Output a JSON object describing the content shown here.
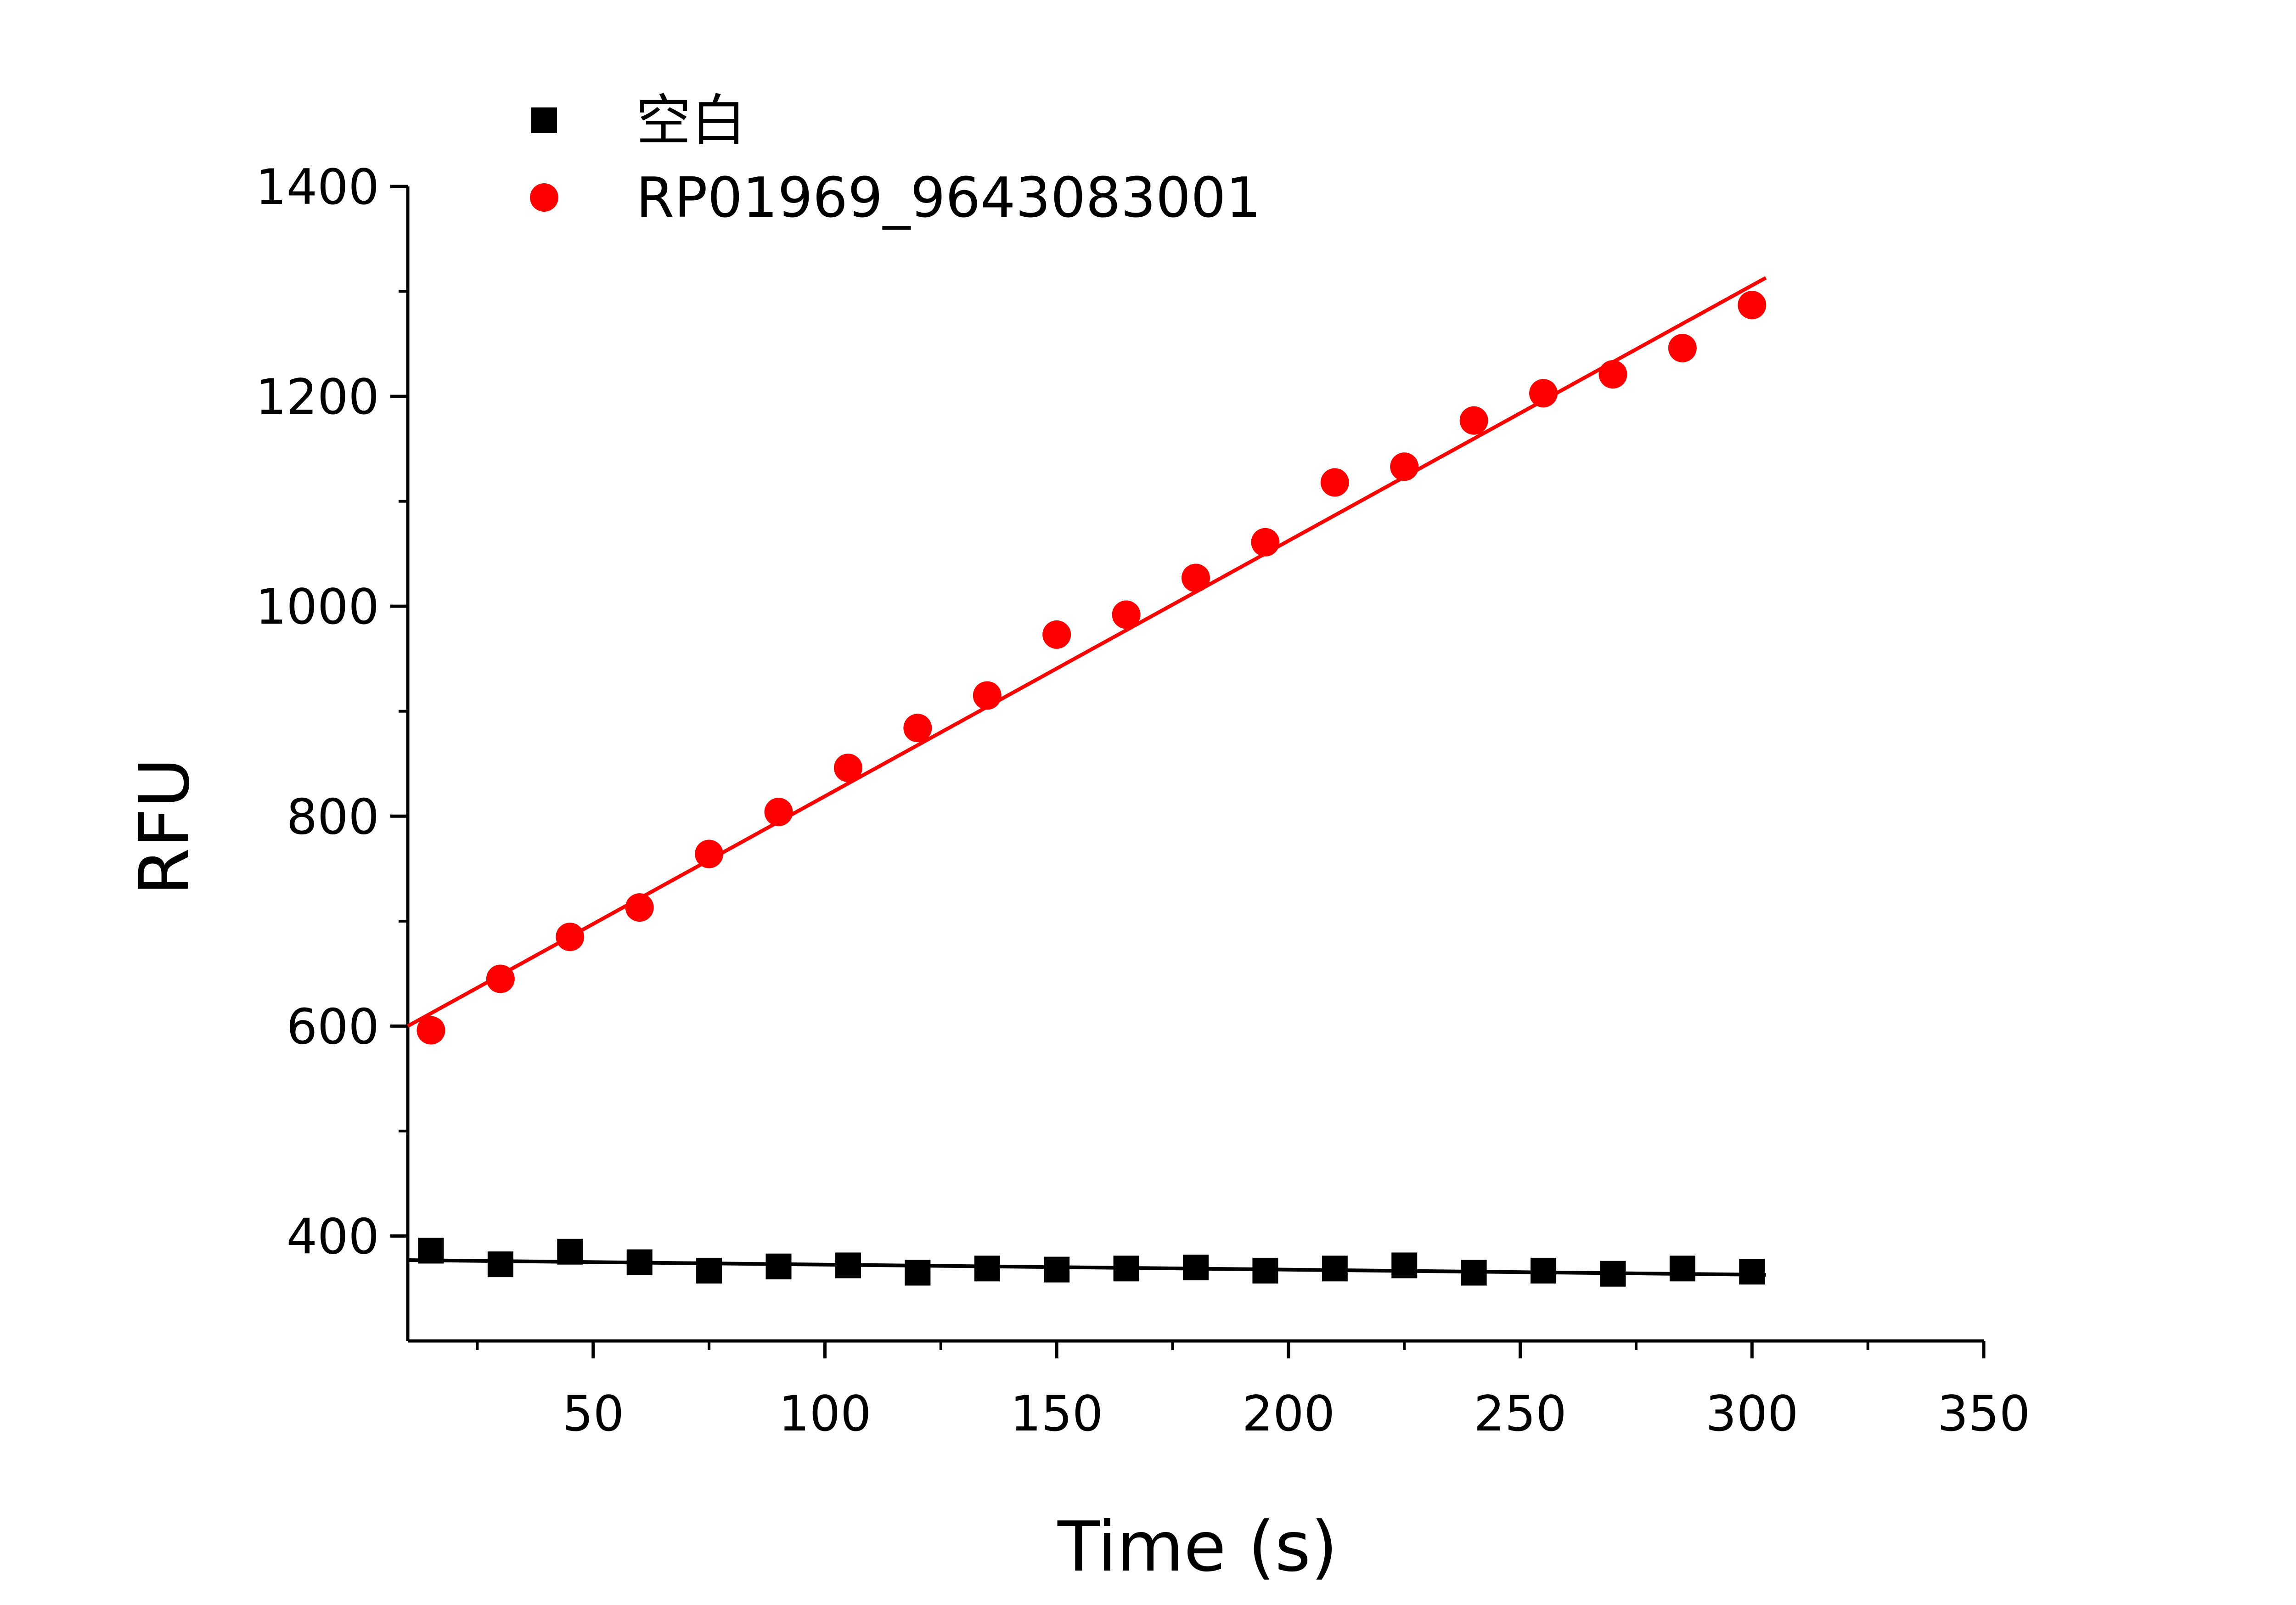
{
  "chart_data": {
    "type": "scatter",
    "title": "",
    "xlabel": "Time (s)",
    "ylabel": "RFU",
    "xlim": [
      10,
      350
    ],
    "ylim": [
      300,
      1400
    ],
    "xticks": [
      50,
      100,
      150,
      200,
      250,
      300,
      350
    ],
    "yticks": [
      400,
      600,
      800,
      1000,
      1200,
      1400
    ],
    "grid": false,
    "legend_position": "top-left",
    "series": [
      {
        "name": "空白",
        "marker": "square",
        "color": "#000000",
        "x": [
          15,
          30,
          45,
          60,
          75,
          90,
          105,
          120,
          135,
          150,
          165,
          180,
          195,
          210,
          225,
          240,
          255,
          270,
          285,
          300
        ],
        "y": [
          386,
          373,
          385,
          375,
          367,
          371,
          372,
          365,
          369,
          368,
          369,
          370,
          367,
          369,
          372,
          365,
          367,
          364,
          369,
          366
        ],
        "fit": {
          "x": [
            10,
            303
          ],
          "y": [
            377,
            363
          ]
        }
      },
      {
        "name": "RP01969_9643083001",
        "marker": "circle",
        "color": "#ff0000",
        "x": [
          15,
          30,
          45,
          60,
          75,
          90,
          105,
          120,
          135,
          150,
          165,
          180,
          195,
          210,
          225,
          240,
          255,
          270,
          285,
          300
        ],
        "y": [
          596,
          645,
          685,
          713,
          764,
          804,
          846,
          884,
          915,
          973,
          992,
          1027,
          1061,
          1118,
          1133,
          1177,
          1203,
          1221,
          1246,
          1287
        ],
        "fit": {
          "x": [
            10,
            303
          ],
          "y": [
            600,
            1313
          ]
        }
      }
    ]
  }
}
